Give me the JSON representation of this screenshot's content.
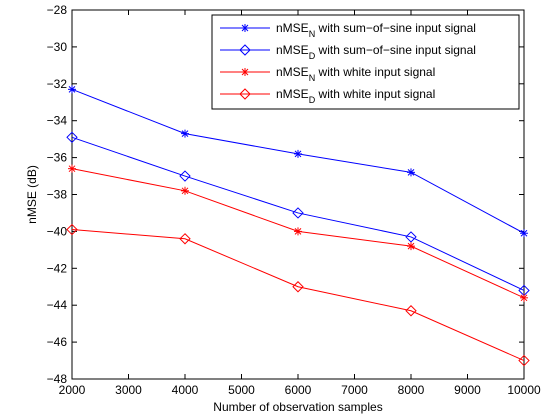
{
  "chart_data": {
    "type": "line",
    "title": "",
    "xlabel": "Number of observation samples",
    "ylabel": "nMSE (dB)",
    "xlim": [
      2000,
      10000
    ],
    "ylim": [
      -48,
      -28
    ],
    "x_ticks": [
      2000,
      3000,
      4000,
      5000,
      6000,
      7000,
      8000,
      9000,
      10000
    ],
    "y_ticks": [
      -28,
      -30,
      -32,
      -34,
      -36,
      -38,
      -40,
      -42,
      -44,
      -46,
      -48
    ],
    "x_tick_labels": [
      "2000",
      "3000",
      "4000",
      "5000",
      "6000",
      "7000",
      "8000",
      "9000",
      "10000"
    ],
    "y_tick_labels": [
      "−28",
      "−30",
      "−32",
      "−34",
      "−36",
      "−38",
      "−40",
      "−42",
      "−44",
      "−46",
      "−48"
    ],
    "grid": false,
    "legend_position": "top-right",
    "x": [
      2000,
      4000,
      6000,
      8000,
      10000
    ],
    "series": [
      {
        "label_main": "nMSE",
        "label_sub": "N",
        "label_rest": " with sum−of−sine input signal",
        "color": "#0000ff",
        "marker": "asterisk",
        "values": [
          -32.3,
          -34.7,
          -35.8,
          -36.8,
          -40.1
        ]
      },
      {
        "label_main": "nMSE",
        "label_sub": "D",
        "label_rest": " with sum−of−sine input signal",
        "color": "#0000ff",
        "marker": "diamond",
        "values": [
          -34.9,
          -37.0,
          -39.0,
          -40.3,
          -43.2
        ]
      },
      {
        "label_main": "nMSE",
        "label_sub": "N",
        "label_rest": " with white input signal",
        "color": "#ff0000",
        "marker": "asterisk",
        "values": [
          -36.6,
          -37.8,
          -40.0,
          -40.8,
          -43.6
        ]
      },
      {
        "label_main": "nMSE",
        "label_sub": "D",
        "label_rest": " with white input signal",
        "color": "#ff0000",
        "marker": "diamond",
        "values": [
          -39.9,
          -40.4,
          -43.0,
          -44.3,
          -47.0
        ]
      }
    ]
  }
}
